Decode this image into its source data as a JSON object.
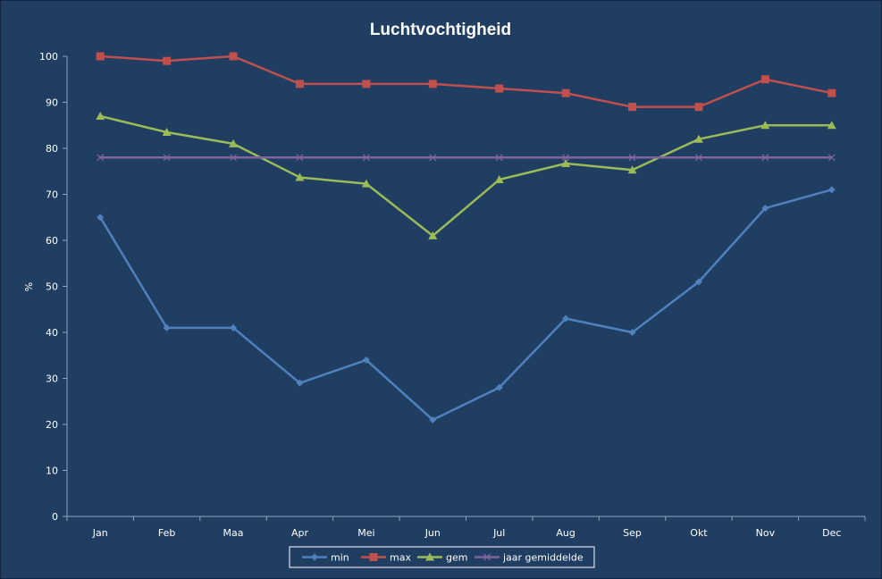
{
  "chart_data": {
    "type": "line",
    "title": "Luchtvochtigheid",
    "xlabel": "",
    "ylabel": "%",
    "ylim": [
      0,
      100
    ],
    "yticks": [
      0,
      10,
      20,
      30,
      40,
      50,
      60,
      70,
      80,
      90,
      100
    ],
    "categories": [
      "Jan",
      "Feb",
      "Maa",
      "Apr",
      "Mei",
      "Jun",
      "Jul",
      "Aug",
      "Sep",
      "Okt",
      "Nov",
      "Dec"
    ],
    "grid": false,
    "legend_position": "bottom",
    "series": [
      {
        "name": "min",
        "color": "#4f81bd",
        "marker": "diamond",
        "values": [
          65,
          41,
          41,
          29,
          34,
          21,
          28,
          43,
          40,
          51,
          67,
          71
        ]
      },
      {
        "name": "max",
        "color": "#c0504d",
        "marker": "square",
        "values": [
          100,
          99,
          100,
          94,
          94,
          94,
          93,
          92,
          89,
          89,
          95,
          92
        ]
      },
      {
        "name": "gem",
        "color": "#9bbb59",
        "marker": "triangle",
        "values": [
          87,
          83.5,
          81,
          73.7,
          72.3,
          61,
          73.2,
          76.7,
          75.3,
          82,
          85,
          85
        ]
      },
      {
        "name": "jaar gemiddelde",
        "color": "#8064a2",
        "marker": "x",
        "values": [
          78,
          78,
          78,
          78,
          78,
          78,
          78,
          78,
          78,
          78,
          78,
          78
        ]
      }
    ]
  }
}
